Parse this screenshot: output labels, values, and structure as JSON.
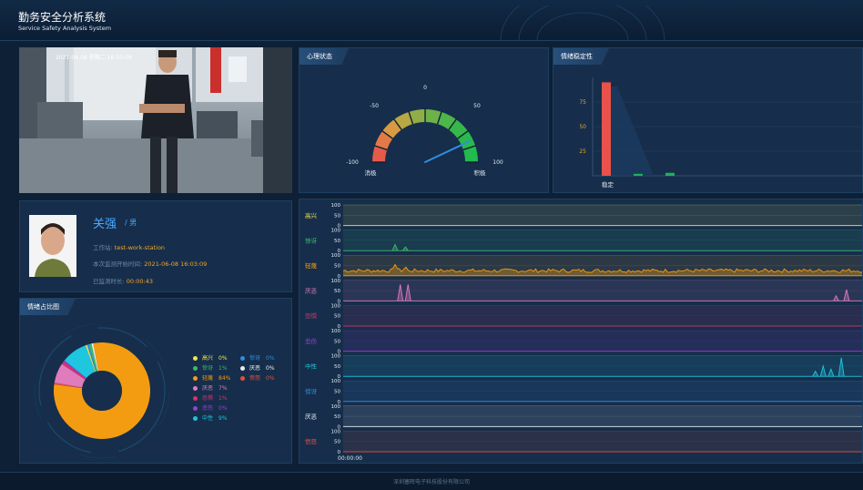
{
  "header": {
    "title_cn": "勤务安全分析系统",
    "title_en": "Service Safety Analysis System"
  },
  "video": {
    "timestamp": "2021-06-08 星期二 16:03:09"
  },
  "panels": {
    "psych_state": {
      "title": "心理状态",
      "gauge": {
        "value": 72,
        "min": -100,
        "max": 100,
        "ticks": [
          "-100",
          "-50",
          "0",
          "50",
          "100"
        ],
        "label_negative": "消极",
        "label_positive": "积极"
      }
    },
    "emotion_stability": {
      "title": "情绪稳定性",
      "chart_data": {
        "type": "bar",
        "yticks": [
          "75",
          "50",
          "25"
        ],
        "ylim": [
          0,
          100
        ],
        "xlabel_first": "稳定",
        "values": [
          95,
          2,
          3
        ],
        "colors": [
          "#e8524a",
          "#21b05a",
          "#21b05a"
        ]
      }
    },
    "emotion_ratio": {
      "title": "情绪占比图",
      "chart_data": {
        "type": "pie",
        "slices": [
          {
            "name": "高兴",
            "percent": "0%",
            "value": 0.6,
            "color": "#f2e34c"
          },
          {
            "name": "惊讶",
            "percent": "0%",
            "value": 0.6,
            "color": "#2f8ee0"
          },
          {
            "name": "惊讶",
            "percent": "1%",
            "value": 1,
            "color": "#3dba6b"
          },
          {
            "name": "厌恶",
            "percent": "0%",
            "value": 0.6,
            "color": "#e8edf2"
          },
          {
            "name": "轻蔑",
            "percent": "84%",
            "value": 84,
            "color": "#f39c12"
          },
          {
            "name": "愤怒",
            "percent": "0%",
            "value": 0.6,
            "color": "#e74c3c"
          },
          {
            "name": "厌恶",
            "percent": "7%",
            "value": 7,
            "color": "#e07bbd"
          },
          {
            "name": "恐惧",
            "percent": "1%",
            "value": 1,
            "color": "#d6336c"
          },
          {
            "name": "悲伤",
            "percent": "0%",
            "value": 0.6,
            "color": "#9b3fd1"
          },
          {
            "name": "中性",
            "percent": "9%",
            "value": 9,
            "color": "#1ec6df"
          }
        ]
      }
    }
  },
  "person": {
    "name": "关强",
    "gender": "/ 男",
    "station_label": "工作站:",
    "station_value": "test-work-station",
    "start_label": "本次监测开始时间:",
    "start_value": "2021-06-08 16:03:09",
    "duration_label": "已监测时长:",
    "duration_value": "00:00:43"
  },
  "strips": {
    "scale_labels": [
      "100",
      "50",
      "0"
    ],
    "time_label": "00:00:00",
    "chart_data": {
      "type": "line",
      "series": [
        {
          "name": "高兴",
          "color": "#f2e34c",
          "spikes": []
        },
        {
          "name": "惊讶",
          "color": "#3dba6b",
          "spikes": [
            [
              0.1,
              0.3
            ],
            [
              0.12,
              0.18
            ]
          ]
        },
        {
          "name": "轻蔑",
          "color": "#f39c12",
          "baseline": 0.25,
          "noisy": true,
          "spikes": [
            [
              0.1,
              0.55
            ],
            [
              0.12,
              0.45
            ]
          ]
        },
        {
          "name": "厌恶",
          "color": "#e07bbd",
          "spikes": [
            [
              0.11,
              0.8
            ],
            [
              0.125,
              0.8
            ],
            [
              0.95,
              0.25
            ],
            [
              0.97,
              0.55
            ]
          ]
        },
        {
          "name": "恐惧",
          "color": "#d6336c",
          "spikes": []
        },
        {
          "name": "悲伤",
          "color": "#9b3fd1",
          "spikes": []
        },
        {
          "name": "中性",
          "color": "#1ec6df",
          "spikes": [
            [
              0.91,
              0.25
            ],
            [
              0.925,
              0.5
            ],
            [
              0.94,
              0.35
            ],
            [
              0.96,
              0.9
            ]
          ]
        },
        {
          "name": "惊讶",
          "color": "#2f8ee0",
          "spikes": []
        },
        {
          "name": "厌恶",
          "color": "#e8edf2",
          "spikes": []
        },
        {
          "name": "愤怒",
          "color": "#e74c3c",
          "spikes": []
        }
      ]
    }
  },
  "footer": {
    "copyright": "深圳塞晖电子科技股份有限公司"
  }
}
